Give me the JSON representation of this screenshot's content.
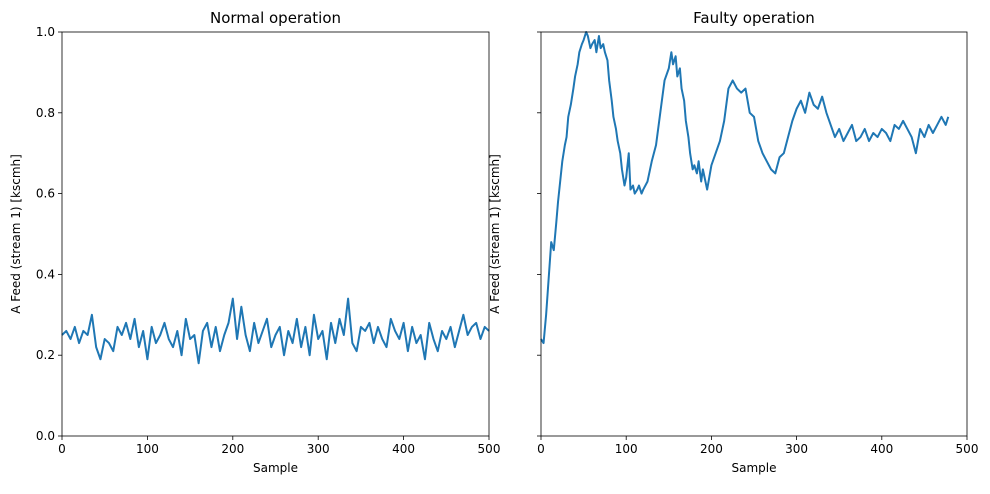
{
  "chart_data": [
    {
      "type": "line",
      "title": "Normal operation",
      "xlabel": "Sample",
      "ylabel": "A Feed (stream 1) [kscmh]",
      "xlim": [
        0,
        500
      ],
      "ylim": [
        0,
        1.0
      ],
      "xticks": [
        "0",
        "100",
        "200",
        "300",
        "400",
        "500"
      ],
      "yticks": [
        "0.0",
        "0.2",
        "0.4",
        "0.6",
        "0.8",
        "1.0"
      ],
      "grid": false,
      "color": "#1f77b4",
      "series": [
        {
          "x": [
            0,
            5,
            10,
            15,
            20,
            25,
            30,
            35,
            40,
            45,
            50,
            55,
            60,
            65,
            70,
            75,
            80,
            85,
            90,
            95,
            100,
            105,
            110,
            115,
            120,
            125,
            130,
            135,
            140,
            145,
            150,
            155,
            160,
            165,
            170,
            175,
            180,
            185,
            190,
            195,
            200,
            205,
            210,
            215,
            220,
            225,
            230,
            235,
            240,
            245,
            250,
            255,
            260,
            265,
            270,
            275,
            280,
            285,
            290,
            295,
            300,
            305,
            310,
            315,
            320,
            325,
            330,
            335,
            340,
            345,
            350,
            355,
            360,
            365,
            370,
            375,
            380,
            385,
            390,
            395,
            400,
            405,
            410,
            415,
            420,
            425,
            430,
            435,
            440,
            445,
            450,
            455,
            460,
            465,
            470,
            475,
            480,
            485,
            490,
            495,
            500
          ],
          "y": [
            0.25,
            0.26,
            0.24,
            0.27,
            0.23,
            0.26,
            0.25,
            0.3,
            0.22,
            0.19,
            0.24,
            0.23,
            0.21,
            0.27,
            0.25,
            0.28,
            0.24,
            0.29,
            0.22,
            0.26,
            0.19,
            0.27,
            0.23,
            0.25,
            0.28,
            0.24,
            0.22,
            0.26,
            0.2,
            0.29,
            0.24,
            0.25,
            0.18,
            0.26,
            0.28,
            0.22,
            0.27,
            0.21,
            0.25,
            0.28,
            0.34,
            0.24,
            0.32,
            0.25,
            0.21,
            0.28,
            0.23,
            0.26,
            0.29,
            0.22,
            0.25,
            0.27,
            0.2,
            0.26,
            0.23,
            0.29,
            0.22,
            0.27,
            0.2,
            0.3,
            0.24,
            0.26,
            0.19,
            0.28,
            0.23,
            0.29,
            0.25,
            0.34,
            0.23,
            0.21,
            0.27,
            0.26,
            0.28,
            0.23,
            0.27,
            0.24,
            0.22,
            0.29,
            0.26,
            0.24,
            0.28,
            0.21,
            0.27,
            0.23,
            0.25,
            0.19,
            0.28,
            0.24,
            0.21,
            0.26,
            0.24,
            0.27,
            0.22,
            0.26,
            0.3,
            0.25,
            0.27,
            0.28,
            0.24,
            0.27,
            0.26
          ]
        }
      ]
    },
    {
      "type": "line",
      "title": "Faulty operation",
      "xlabel": "Sample",
      "ylabel": "A Feed (stream 1) [kscmh]",
      "xlim": [
        0,
        500
      ],
      "ylim": [
        0,
        1.0
      ],
      "xticks": [
        "0",
        "100",
        "200",
        "300",
        "400",
        "500"
      ],
      "yticks": [
        "",
        "",
        "",
        "",
        "",
        ""
      ],
      "grid": false,
      "color": "#1f77b4",
      "series": [
        {
          "x": [
            0,
            3,
            6,
            8,
            10,
            12,
            15,
            18,
            20,
            23,
            25,
            28,
            30,
            32,
            35,
            38,
            40,
            43,
            45,
            48,
            50,
            53,
            55,
            58,
            60,
            63,
            65,
            68,
            70,
            73,
            75,
            78,
            80,
            83,
            85,
            88,
            90,
            93,
            95,
            98,
            100,
            103,
            105,
            108,
            110,
            113,
            115,
            118,
            120,
            125,
            130,
            135,
            140,
            145,
            150,
            153,
            155,
            158,
            160,
            163,
            165,
            168,
            170,
            173,
            175,
            178,
            180,
            183,
            185,
            188,
            190,
            195,
            200,
            205,
            210,
            215,
            220,
            225,
            230,
            235,
            240,
            245,
            250,
            255,
            260,
            265,
            270,
            275,
            280,
            285,
            290,
            295,
            300,
            305,
            310,
            315,
            320,
            325,
            330,
            335,
            340,
            345,
            350,
            355,
            360,
            365,
            370,
            375,
            380,
            385,
            390,
            395,
            400,
            405,
            410,
            415,
            420,
            425,
            430,
            435,
            440,
            445,
            450,
            455,
            460,
            465,
            470,
            475,
            478
          ],
          "y": [
            0.24,
            0.23,
            0.3,
            0.36,
            0.42,
            0.48,
            0.46,
            0.53,
            0.58,
            0.64,
            0.68,
            0.72,
            0.74,
            0.79,
            0.82,
            0.86,
            0.89,
            0.92,
            0.95,
            0.97,
            0.98,
            1.0,
            0.99,
            0.96,
            0.97,
            0.98,
            0.95,
            0.99,
            0.96,
            0.97,
            0.95,
            0.93,
            0.88,
            0.83,
            0.79,
            0.76,
            0.73,
            0.7,
            0.66,
            0.62,
            0.64,
            0.7,
            0.61,
            0.62,
            0.6,
            0.61,
            0.62,
            0.6,
            0.61,
            0.63,
            0.68,
            0.72,
            0.8,
            0.88,
            0.91,
            0.95,
            0.92,
            0.94,
            0.89,
            0.91,
            0.86,
            0.83,
            0.78,
            0.74,
            0.7,
            0.66,
            0.67,
            0.65,
            0.68,
            0.63,
            0.66,
            0.61,
            0.67,
            0.7,
            0.73,
            0.78,
            0.86,
            0.88,
            0.86,
            0.85,
            0.86,
            0.8,
            0.79,
            0.73,
            0.7,
            0.68,
            0.66,
            0.65,
            0.69,
            0.7,
            0.74,
            0.78,
            0.81,
            0.83,
            0.8,
            0.85,
            0.82,
            0.81,
            0.84,
            0.8,
            0.77,
            0.74,
            0.76,
            0.73,
            0.75,
            0.77,
            0.73,
            0.74,
            0.76,
            0.73,
            0.75,
            0.74,
            0.76,
            0.75,
            0.73,
            0.77,
            0.76,
            0.78,
            0.76,
            0.74,
            0.7,
            0.76,
            0.74,
            0.77,
            0.75,
            0.77,
            0.79,
            0.77,
            0.79
          ]
        }
      ]
    }
  ]
}
